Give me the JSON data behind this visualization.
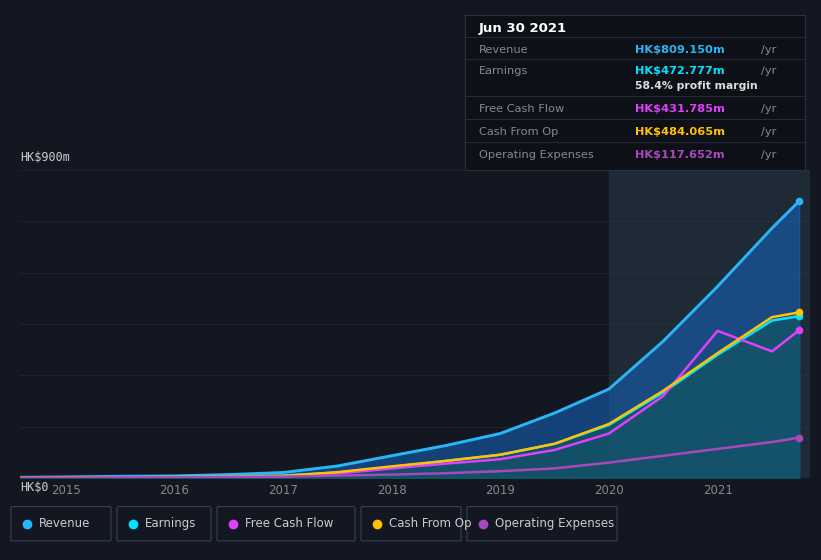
{
  "bg_color": "#131722",
  "chart_bg": "#131722",
  "ylabel": "HK$900m",
  "y0label": "HK$0",
  "xlim": [
    2014.58,
    2021.85
  ],
  "ylim": [
    0,
    900
  ],
  "ytick_positions": [
    0,
    150,
    300,
    450,
    600,
    750,
    900
  ],
  "xticks": [
    2015,
    2016,
    2017,
    2018,
    2019,
    2020,
    2021
  ],
  "years": [
    2014.58,
    2015.0,
    2015.5,
    2016.0,
    2016.5,
    2017.0,
    2017.5,
    2018.0,
    2018.5,
    2019.0,
    2019.5,
    2020.0,
    2020.5,
    2021.0,
    2021.5,
    2021.75
  ],
  "revenue": [
    2,
    3,
    5,
    6,
    10,
    16,
    35,
    65,
    95,
    130,
    190,
    260,
    400,
    560,
    730,
    809
  ],
  "earnings": [
    1,
    2,
    2,
    3,
    5,
    7,
    16,
    32,
    50,
    68,
    100,
    155,
    250,
    360,
    460,
    473
  ],
  "fcf": [
    1,
    1,
    1,
    2,
    3,
    5,
    13,
    28,
    42,
    55,
    82,
    130,
    240,
    430,
    370,
    432
  ],
  "cashop": [
    1,
    2,
    2,
    3,
    4,
    6,
    17,
    34,
    50,
    68,
    100,
    158,
    255,
    365,
    470,
    484
  ],
  "opex": [
    1,
    1,
    2,
    2,
    3,
    4,
    7,
    10,
    14,
    20,
    28,
    45,
    65,
    85,
    105,
    118
  ],
  "revenue_color": "#29b6f6",
  "earnings_color": "#00e5ff",
  "fcf_color": "#e040fb",
  "cashop_color": "#ffc107",
  "opex_color": "#ab47bc",
  "revenue_fill": "#1565c0",
  "earnings_fill": "#006064",
  "highlight_x_start": 2020.0,
  "highlight_x_end": 2021.85,
  "tooltip": {
    "date": "Jun 30 2021",
    "revenue_val": "HK$809.150m",
    "earnings_val": "HK$472.777m",
    "margin": "58.4%",
    "fcf_val": "HK$431.785m",
    "cashop_val": "HK$484.065m",
    "opex_val": "HK$117.652m"
  },
  "legend_items": [
    "Revenue",
    "Earnings",
    "Free Cash Flow",
    "Cash From Op",
    "Operating Expenses"
  ],
  "legend_colors": [
    "#29b6f6",
    "#00e5ff",
    "#e040fb",
    "#ffc107",
    "#ab47bc"
  ],
  "grid_color": "#1e2433",
  "label_color": "#888888",
  "tick_color": "#888888"
}
